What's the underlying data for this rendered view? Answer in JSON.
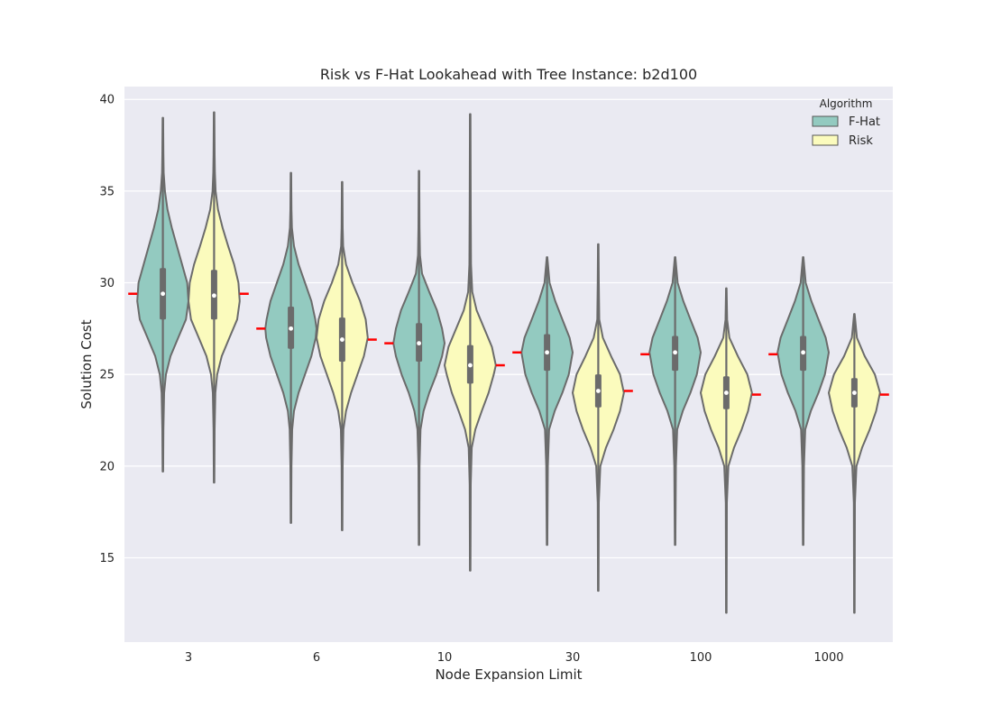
{
  "chart_data": {
    "type": "violin",
    "title": "Risk vs F-Hat Lookahead with Tree Instance: b2d100",
    "xlabel": "Node Expansion Limit",
    "ylabel": "Solution Cost",
    "categories": [
      "3",
      "6",
      "10",
      "30",
      "100",
      "1000"
    ],
    "ylim": [
      10.4,
      40.7
    ],
    "yticks": [
      15,
      20,
      25,
      30,
      35,
      40
    ],
    "grid": true,
    "legend": {
      "title": "Algorithm",
      "placement": "top-right"
    },
    "colors": {
      "F-Hat": "#93cac0",
      "Risk": "#fbfbbd",
      "outline": "#6b6b6b",
      "mean_marker": "#ff0000",
      "background": "#eaeaf2"
    },
    "series": [
      {
        "name": "F-Hat",
        "median": [
          29.4,
          27.5,
          26.7,
          26.2,
          26.2,
          26.2
        ],
        "q1": [
          28.0,
          26.4,
          25.7,
          25.2,
          25.2,
          25.2
        ],
        "q3": [
          30.8,
          28.7,
          27.8,
          27.2,
          27.1,
          27.1
        ],
        "min": [
          19.7,
          16.9,
          15.7,
          15.7,
          15.7,
          15.7
        ],
        "max": [
          39.0,
          36.0,
          36.1,
          31.4,
          31.4,
          31.4
        ],
        "mean": [
          29.4,
          27.5,
          26.7,
          26.2,
          26.1,
          26.1
        ],
        "density": [
          [
            [
              19.7,
              0.01
            ],
            [
              22,
              0.02
            ],
            [
              24,
              0.05
            ],
            [
              25,
              0.12
            ],
            [
              26,
              0.3
            ],
            [
              27,
              0.6
            ],
            [
              28,
              0.9
            ],
            [
              29,
              1.0
            ],
            [
              30,
              0.95
            ],
            [
              31,
              0.75
            ],
            [
              32,
              0.55
            ],
            [
              33,
              0.35
            ],
            [
              34,
              0.18
            ],
            [
              35,
              0.08
            ],
            [
              36,
              0.03
            ],
            [
              37,
              0.02
            ],
            [
              39,
              0.01
            ]
          ],
          [
            [
              16.9,
              0.01
            ],
            [
              20,
              0.02
            ],
            [
              22,
              0.05
            ],
            [
              23,
              0.12
            ],
            [
              24,
              0.3
            ],
            [
              25,
              0.55
            ],
            [
              26,
              0.8
            ],
            [
              27,
              0.97
            ],
            [
              27.5,
              1.0
            ],
            [
              28,
              0.95
            ],
            [
              29,
              0.8
            ],
            [
              30,
              0.55
            ],
            [
              31,
              0.3
            ],
            [
              32,
              0.12
            ],
            [
              33,
              0.04
            ],
            [
              34,
              0.02
            ],
            [
              36,
              0.01
            ]
          ],
          [
            [
              15.7,
              0.01
            ],
            [
              20,
              0.02
            ],
            [
              22,
              0.06
            ],
            [
              23,
              0.18
            ],
            [
              24,
              0.4
            ],
            [
              25,
              0.68
            ],
            [
              26,
              0.9
            ],
            [
              26.7,
              1.0
            ],
            [
              27.5,
              0.9
            ],
            [
              28.5,
              0.7
            ],
            [
              29.5,
              0.4
            ],
            [
              30.5,
              0.12
            ],
            [
              31.5,
              0.04
            ],
            [
              33,
              0.02
            ],
            [
              36.1,
              0.01
            ]
          ],
          [
            [
              15.7,
              0.01
            ],
            [
              20,
              0.03
            ],
            [
              22,
              0.08
            ],
            [
              23,
              0.3
            ],
            [
              24,
              0.6
            ],
            [
              25,
              0.85
            ],
            [
              26.2,
              1.0
            ],
            [
              27,
              0.88
            ],
            [
              28,
              0.6
            ],
            [
              29,
              0.32
            ],
            [
              30,
              0.1
            ],
            [
              31.4,
              0.01
            ]
          ],
          [
            [
              15.7,
              0.01
            ],
            [
              20,
              0.03
            ],
            [
              22,
              0.08
            ],
            [
              23,
              0.3
            ],
            [
              24,
              0.6
            ],
            [
              25,
              0.85
            ],
            [
              26.2,
              1.0
            ],
            [
              27,
              0.88
            ],
            [
              28,
              0.6
            ],
            [
              29,
              0.32
            ],
            [
              30,
              0.1
            ],
            [
              31.4,
              0.01
            ]
          ],
          [
            [
              15.7,
              0.01
            ],
            [
              20,
              0.03
            ],
            [
              22,
              0.08
            ],
            [
              23,
              0.3
            ],
            [
              24,
              0.6
            ],
            [
              25,
              0.85
            ],
            [
              26.2,
              1.0
            ],
            [
              27,
              0.88
            ],
            [
              28,
              0.6
            ],
            [
              29,
              0.32
            ],
            [
              30,
              0.1
            ],
            [
              31.4,
              0.01
            ]
          ]
        ]
      },
      {
        "name": "Risk",
        "median": [
          29.3,
          26.9,
          25.5,
          24.1,
          24.0,
          24.0
        ],
        "q1": [
          28.0,
          25.7,
          24.5,
          23.2,
          23.1,
          23.2
        ],
        "q3": [
          30.7,
          28.1,
          26.6,
          25.0,
          24.9,
          24.8
        ],
        "min": [
          19.1,
          16.5,
          14.3,
          13.2,
          12.0,
          12.0
        ],
        "max": [
          39.3,
          35.5,
          39.2,
          32.1,
          29.7,
          28.3
        ],
        "mean": [
          29.4,
          26.9,
          25.5,
          24.1,
          23.9,
          23.9
        ],
        "density": [
          [
            [
              19.1,
              0.01
            ],
            [
              22,
              0.02
            ],
            [
              24,
              0.05
            ],
            [
              25,
              0.12
            ],
            [
              26,
              0.3
            ],
            [
              27,
              0.6
            ],
            [
              28,
              0.9
            ],
            [
              29,
              1.0
            ],
            [
              30,
              0.95
            ],
            [
              31,
              0.78
            ],
            [
              32,
              0.55
            ],
            [
              33,
              0.33
            ],
            [
              34,
              0.15
            ],
            [
              35,
              0.06
            ],
            [
              36,
              0.03
            ],
            [
              37,
              0.02
            ],
            [
              39.3,
              0.01
            ]
          ],
          [
            [
              16.5,
              0.01
            ],
            [
              20,
              0.02
            ],
            [
              22,
              0.05
            ],
            [
              23,
              0.15
            ],
            [
              24,
              0.35
            ],
            [
              25,
              0.6
            ],
            [
              26,
              0.85
            ],
            [
              27,
              1.0
            ],
            [
              28,
              0.92
            ],
            [
              29,
              0.7
            ],
            [
              30,
              0.4
            ],
            [
              31,
              0.15
            ],
            [
              32,
              0.04
            ],
            [
              33,
              0.02
            ],
            [
              35.5,
              0.01
            ]
          ],
          [
            [
              14.3,
              0.01
            ],
            [
              19,
              0.02
            ],
            [
              21,
              0.06
            ],
            [
              22,
              0.2
            ],
            [
              23,
              0.45
            ],
            [
              24,
              0.72
            ],
            [
              25,
              0.92
            ],
            [
              25.5,
              1.0
            ],
            [
              26.5,
              0.85
            ],
            [
              27.5,
              0.55
            ],
            [
              28.5,
              0.25
            ],
            [
              29.5,
              0.08
            ],
            [
              31,
              0.03
            ],
            [
              34,
              0.02
            ],
            [
              39.2,
              0.01
            ]
          ],
          [
            [
              13.2,
              0.01
            ],
            [
              18,
              0.02
            ],
            [
              20,
              0.08
            ],
            [
              21,
              0.3
            ],
            [
              22,
              0.6
            ],
            [
              23,
              0.85
            ],
            [
              24,
              1.0
            ],
            [
              25,
              0.85
            ],
            [
              26,
              0.5
            ],
            [
              27,
              0.18
            ],
            [
              28,
              0.04
            ],
            [
              30,
              0.02
            ],
            [
              32.1,
              0.01
            ]
          ],
          [
            [
              12.0,
              0.01
            ],
            [
              18,
              0.02
            ],
            [
              20,
              0.08
            ],
            [
              21,
              0.3
            ],
            [
              22,
              0.6
            ],
            [
              23,
              0.85
            ],
            [
              24,
              1.0
            ],
            [
              25,
              0.82
            ],
            [
              26,
              0.45
            ],
            [
              27,
              0.12
            ],
            [
              28,
              0.03
            ],
            [
              29.7,
              0.01
            ]
          ],
          [
            [
              12.0,
              0.01
            ],
            [
              18,
              0.02
            ],
            [
              20,
              0.08
            ],
            [
              21,
              0.3
            ],
            [
              22,
              0.6
            ],
            [
              23,
              0.85
            ],
            [
              24,
              1.0
            ],
            [
              25,
              0.8
            ],
            [
              26,
              0.4
            ],
            [
              27,
              0.1
            ],
            [
              28.3,
              0.01
            ]
          ]
        ]
      }
    ]
  }
}
